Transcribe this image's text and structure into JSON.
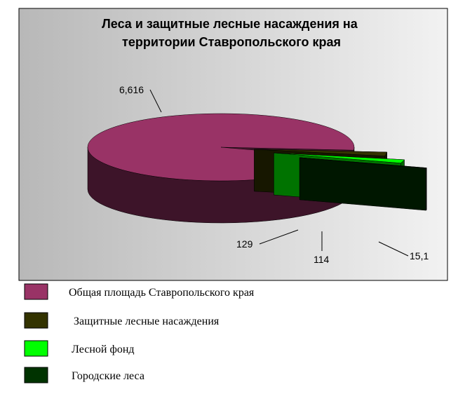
{
  "chart_data": {
    "type": "pie3d",
    "title": "Леса и защитные лесные насаждения на территории Ставропольского края",
    "categories": [
      "Общая площадь Ставропольского края",
      "Защитные лесные насаждения",
      "Лесной фонд",
      "Городские леса"
    ],
    "values": [
      6616,
      129,
      114,
      15.1
    ],
    "value_labels": [
      "6,616",
      "129",
      "114",
      "15,1"
    ],
    "colors": [
      "#993366",
      "#333300",
      "#00ff00",
      "#003300"
    ]
  }
}
